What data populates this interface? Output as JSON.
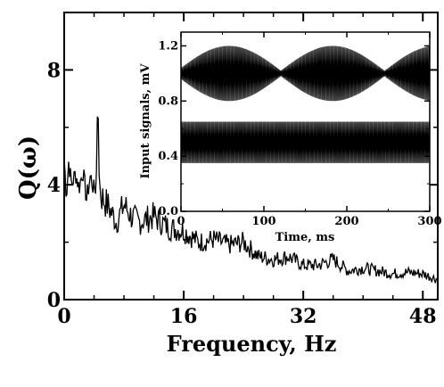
{
  "chart_data": [
    {
      "type": "line",
      "title": "",
      "xlabel": "Frequency, Hz",
      "ylabel": "Q(ω)",
      "xlim": [
        0,
        50
      ],
      "ylim": [
        0,
        10
      ],
      "x_ticks": [
        0,
        16,
        32,
        48
      ],
      "y_ticks": [
        0,
        4,
        8
      ],
      "x_tick_labels": [
        "0",
        "16",
        "32",
        "48"
      ],
      "y_tick_labels": [
        "0",
        "4",
        "8"
      ],
      "grid": false,
      "series": [
        {
          "x": [
            0,
            0.3,
            0.6,
            1,
            1.5,
            2,
            2.5,
            3,
            3.5,
            4,
            4.3,
            4.5,
            4.7,
            5,
            5.5,
            6,
            7,
            8,
            9,
            10,
            12,
            14,
            16,
            18,
            20,
            22,
            24,
            26,
            28,
            30,
            32,
            34,
            36,
            38,
            40,
            42,
            44,
            46,
            48,
            50
          ],
          "values": [
            4.9,
            3.6,
            4.8,
            4.0,
            4.4,
            3.9,
            4.5,
            3.5,
            4.3,
            3.8,
            4.2,
            7.3,
            4.0,
            3.6,
            3.4,
            3.2,
            2.7,
            3.3,
            2.9,
            2.7,
            2.9,
            2.5,
            2.4,
            2.0,
            2.1,
            1.9,
            2.0,
            1.5,
            1.4,
            1.5,
            1.2,
            1.2,
            1.4,
            1.0,
            1.1,
            1.0,
            0.9,
            0.95,
            0.9,
            0.7
          ]
        }
      ]
    },
    {
      "type": "line",
      "title": "",
      "xlabel": "Time, ms",
      "ylabel": "Input signals, mV",
      "xlim": [
        0,
        300
      ],
      "ylim": [
        0,
        1.3
      ],
      "x_ticks": [
        0,
        100,
        200,
        300
      ],
      "y_ticks": [
        0.0,
        0.4,
        0.8,
        1.2
      ],
      "x_tick_labels": [
        "0",
        "100",
        "200",
        "300"
      ],
      "y_tick_labels": [
        "0.0",
        "0.4",
        "0.8",
        "1.2"
      ],
      "grid": false,
      "series": [
        {
          "center": 1.0,
          "envelope_min": 0.02,
          "envelope_max": 0.2,
          "envelope_period_ms": 125,
          "envelope_peaks_ms": [
            58,
            183
          ],
          "range": [
            0.8,
            1.2
          ]
        },
        {
          "center": 0.5,
          "amplitude": 0.15,
          "range": [
            0.35,
            0.65
          ]
        }
      ]
    }
  ]
}
